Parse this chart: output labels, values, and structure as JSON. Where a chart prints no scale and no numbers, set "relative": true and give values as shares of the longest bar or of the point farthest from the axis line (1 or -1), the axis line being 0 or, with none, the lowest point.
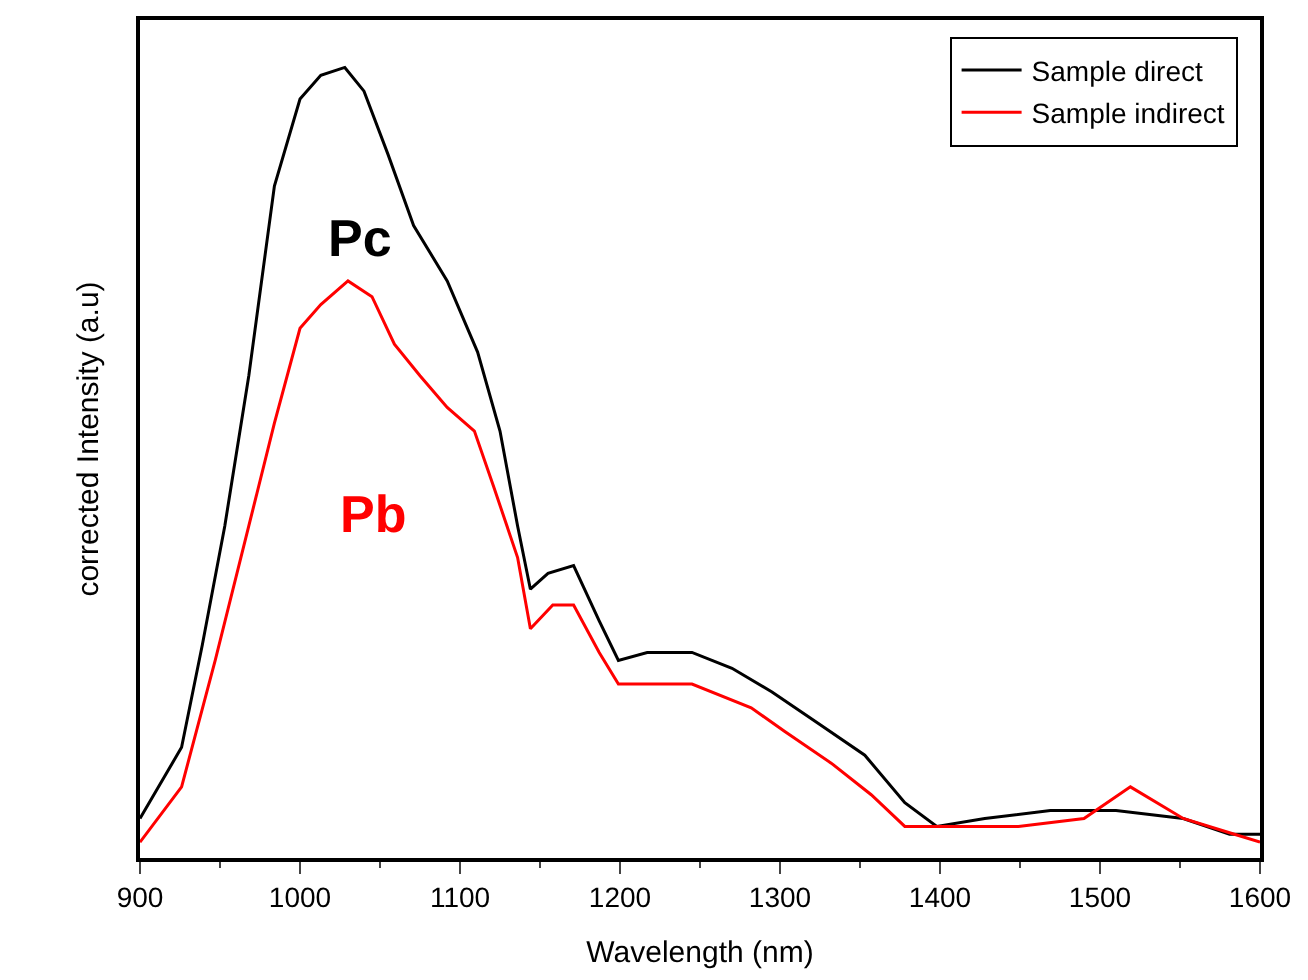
{
  "chart_data": {
    "type": "line",
    "xlabel": "Wavelength (nm)",
    "ylabel": "corrected Intensity (a.u)",
    "relative": true,
    "xlim": [
      900,
      1600
    ],
    "xticks": [
      900,
      1000,
      1100,
      1200,
      1300,
      1400,
      1500,
      1600
    ],
    "legend": "top right",
    "marker": "none",
    "line_style": "solid",
    "annotations": [
      "Pc",
      "Pb"
    ],
    "series": [
      {
        "name": "Sample direct",
        "color": "#000000",
        "x": [
          900,
          926,
          939,
          953,
          968,
          984,
          1000,
          1013,
          1028,
          1040,
          1055,
          1071,
          1092,
          1111,
          1125,
          1136,
          1144,
          1155,
          1171,
          1187,
          1199,
          1217,
          1245,
          1270,
          1295,
          1324,
          1353,
          1378,
          1398,
          1428,
          1469,
          1510,
          1552,
          1581,
          1600
        ],
        "values": [
          0.05,
          0.14,
          0.27,
          0.42,
          0.61,
          0.85,
          0.96,
          0.99,
          1.0,
          0.97,
          0.89,
          0.8,
          0.73,
          0.64,
          0.54,
          0.42,
          0.34,
          0.36,
          0.37,
          0.3,
          0.25,
          0.26,
          0.26,
          0.24,
          0.21,
          0.17,
          0.13,
          0.07,
          0.04,
          0.05,
          0.06,
          0.06,
          0.05,
          0.03,
          0.03
        ]
      },
      {
        "name": "Sample indirect",
        "color": "#ff0000",
        "x": [
          900,
          926,
          947,
          968,
          984,
          1000,
          1013,
          1030,
          1045,
          1059,
          1075,
          1092,
          1109,
          1121,
          1136,
          1144,
          1158,
          1171,
          1187,
          1199,
          1217,
          1245,
          1282,
          1303,
          1332,
          1357,
          1378,
          1407,
          1449,
          1490,
          1519,
          1552,
          1584,
          1600
        ],
        "values": [
          0.02,
          0.09,
          0.25,
          0.42,
          0.55,
          0.67,
          0.7,
          0.73,
          0.71,
          0.65,
          0.61,
          0.57,
          0.54,
          0.47,
          0.38,
          0.29,
          0.32,
          0.32,
          0.26,
          0.22,
          0.22,
          0.22,
          0.19,
          0.16,
          0.12,
          0.08,
          0.04,
          0.04,
          0.04,
          0.05,
          0.09,
          0.05,
          0.03,
          0.02
        ]
      }
    ]
  }
}
